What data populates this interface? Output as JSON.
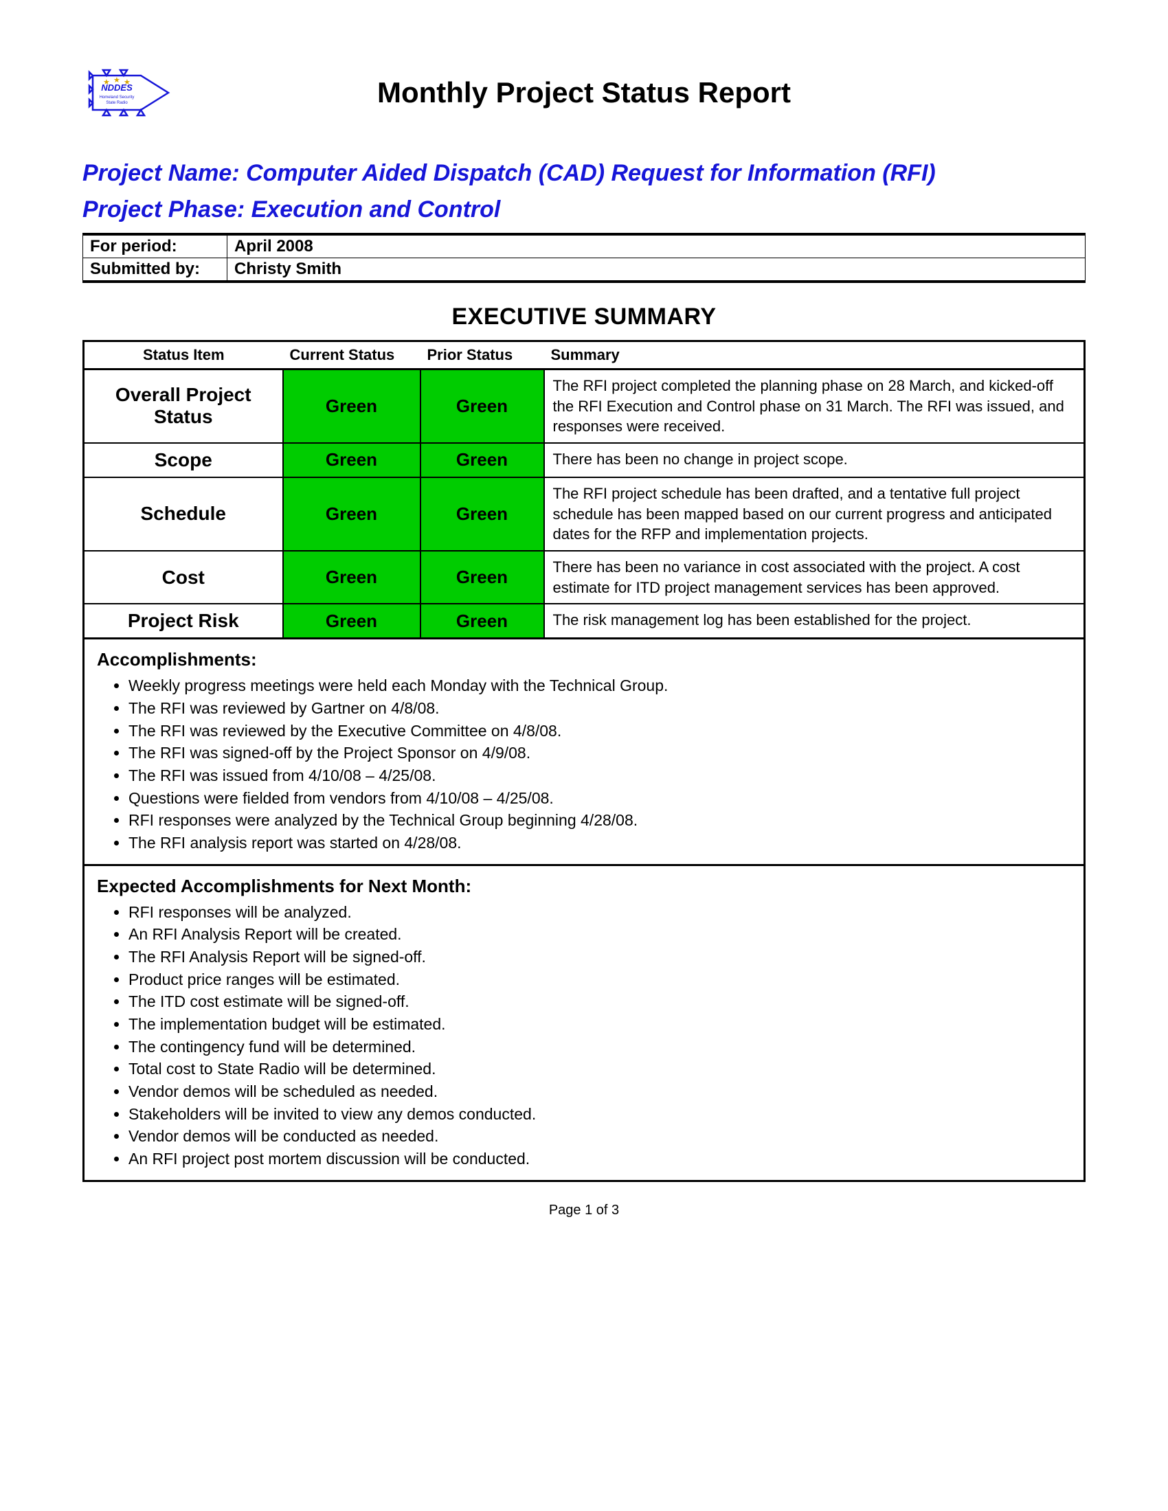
{
  "title": "Monthly Project Status Report",
  "logo": {
    "text": "NDDES",
    "subtext": "Homeland Security State Radio",
    "outline_color": "#1616d8",
    "star_color": "#d9a400"
  },
  "project_name_label": "Project Name:",
  "project_name_value": "Computer Aided Dispatch (CAD) Request for Information (RFI)",
  "project_phase_label": "Project Phase:",
  "project_phase_value": "Execution and Control",
  "meta": {
    "period_label": "For period:",
    "period_value": "April 2008",
    "submitted_label": "Submitted by:",
    "submitted_value": "Christy Smith"
  },
  "exec_heading": "EXECUTIVE SUMMARY",
  "status_headers": {
    "item": "Status Item",
    "current": "Current Status",
    "prior": "Prior Status",
    "summary": "Summary"
  },
  "status_green_color": "#00cc00",
  "status_rows": [
    {
      "item": "Overall Project Status",
      "current": "Green",
      "prior": "Green",
      "summary": "The RFI project completed the planning phase on 28 March, and kicked-off the RFI Execution and Control phase on 31 March.  The RFI was issued, and responses were received."
    },
    {
      "item": "Scope",
      "current": "Green",
      "prior": "Green",
      "summary": "There has been no change in project scope."
    },
    {
      "item": "Schedule",
      "current": "Green",
      "prior": "Green",
      "summary": "The RFI project schedule has been drafted, and a tentative full project schedule has been mapped based on our current progress and anticipated dates for the RFP and implementation projects."
    },
    {
      "item": "Cost",
      "current": "Green",
      "prior": "Green",
      "summary": "There has been no variance in cost associated with the project.  A cost estimate for ITD project management services has been approved."
    },
    {
      "item": "Project Risk",
      "current": "Green",
      "prior": "Green",
      "summary": "The risk management log has been established for the project."
    }
  ],
  "accomplishments_heading": "Accomplishments:",
  "accomplishments": [
    "Weekly progress meetings were held each Monday with the Technical Group.",
    "The RFI was reviewed by Gartner on 4/8/08.",
    "The RFI was reviewed by the Executive Committee on 4/8/08.",
    "The RFI was signed-off by the Project Sponsor on 4/9/08.",
    "The RFI was issued from 4/10/08 – 4/25/08.",
    "Questions were fielded from vendors from 4/10/08 – 4/25/08.",
    "RFI responses were analyzed by the Technical Group beginning 4/28/08.",
    "The RFI analysis report was started on 4/28/08."
  ],
  "expected_heading": "Expected Accomplishments for Next Month:",
  "expected": [
    "RFI responses will be analyzed.",
    "An RFI Analysis Report will be created.",
    "The RFI Analysis Report will be signed-off.",
    "Product price ranges will be estimated.",
    "The ITD cost estimate will be signed-off.",
    "The implementation budget will be estimated.",
    "The contingency fund will be determined.",
    "Total cost to State Radio will be determined.",
    "Vendor demos will be scheduled as needed.",
    "Stakeholders will be invited to view any demos conducted.",
    "Vendor demos will be conducted as needed.",
    "An RFI project post mortem discussion will be conducted."
  ],
  "footer": "Page 1 of 3"
}
